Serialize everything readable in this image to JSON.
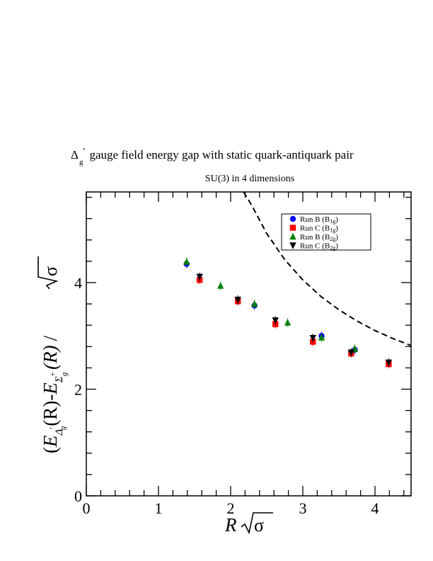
{
  "chart_data": {
    "type": "scatter",
    "title_symbol": "Δ",
    "title_sub": "g",
    "title_prime": "′",
    "title_rest": "gauge field energy gap with static quark-antiquark pair",
    "subtitle": "SU(3) in 4 dimensions",
    "xlabel": {
      "R": "R",
      "sigma": "σ"
    },
    "ylabel": {
      "open": "(",
      "E1": "E",
      "sub1": "Δ",
      "sub1_prime": "′",
      "sub1_g": "g",
      "mid": "(R)-",
      "E2": "E",
      "sub2": "Σ",
      "sub2_g": "g",
      "sup2": "+",
      "close": "(R)",
      "slash": "/",
      "sigma": "σ"
    },
    "xlim": [
      0,
      4.5
    ],
    "ylim": [
      0,
      5.7
    ],
    "x_ticks": [
      0,
      1,
      2,
      3,
      4
    ],
    "x_tick_labels": [
      "0",
      "1",
      "2",
      "3",
      "4"
    ],
    "y_ticks": [
      0,
      2,
      4
    ],
    "y_tick_labels": [
      "0",
      "2",
      "4"
    ],
    "legend_position": "top-right",
    "series": [
      {
        "name": "Run B (B1g)",
        "label_main": "Run B (B",
        "label_sub": "1g",
        "label_end": ")",
        "marker": "circle",
        "color": "#0000ff",
        "x": [
          1.39,
          2.33,
          3.26,
          3.72
        ],
        "y": [
          4.35,
          3.57,
          3.0,
          2.74
        ]
      },
      {
        "name": "Run C (B1g)",
        "label_main": "Run C (B",
        "label_sub": "1g",
        "label_end": ")",
        "marker": "square",
        "color": "#ff0000",
        "x": [
          1.57,
          2.1,
          2.62,
          3.14,
          3.67,
          4.19
        ],
        "y": [
          4.05,
          3.65,
          3.22,
          2.89,
          2.67,
          2.47
        ]
      },
      {
        "name": "Run B (B2g)",
        "label_main": "Run B (B",
        "label_sub": "2g",
        "label_end": ")",
        "marker": "triangle-up",
        "color": "#008000",
        "x": [
          1.39,
          1.86,
          2.33,
          2.79,
          3.26,
          3.72
        ],
        "y": [
          4.39,
          3.94,
          3.6,
          3.25,
          2.97,
          2.76
        ]
      },
      {
        "name": "Run C (B2g)",
        "label_main": "Run C (B",
        "label_sub": "2g",
        "label_end": ")",
        "marker": "triangle-down",
        "color": "#000000",
        "x": [
          1.57,
          2.1,
          2.62,
          3.14,
          3.67,
          4.19
        ],
        "y": [
          4.11,
          3.68,
          3.29,
          2.96,
          2.69,
          2.5
        ]
      }
    ],
    "reference_curve": {
      "style": "dashed",
      "color": "#000000",
      "x": [
        2.18,
        2.3,
        2.5,
        2.75,
        3.0,
        3.25,
        3.5,
        3.75,
        4.0,
        4.25,
        4.5
      ],
      "y": [
        5.72,
        5.43,
        4.92,
        4.43,
        4.05,
        3.74,
        3.49,
        3.28,
        3.1,
        2.95,
        2.82
      ]
    }
  }
}
